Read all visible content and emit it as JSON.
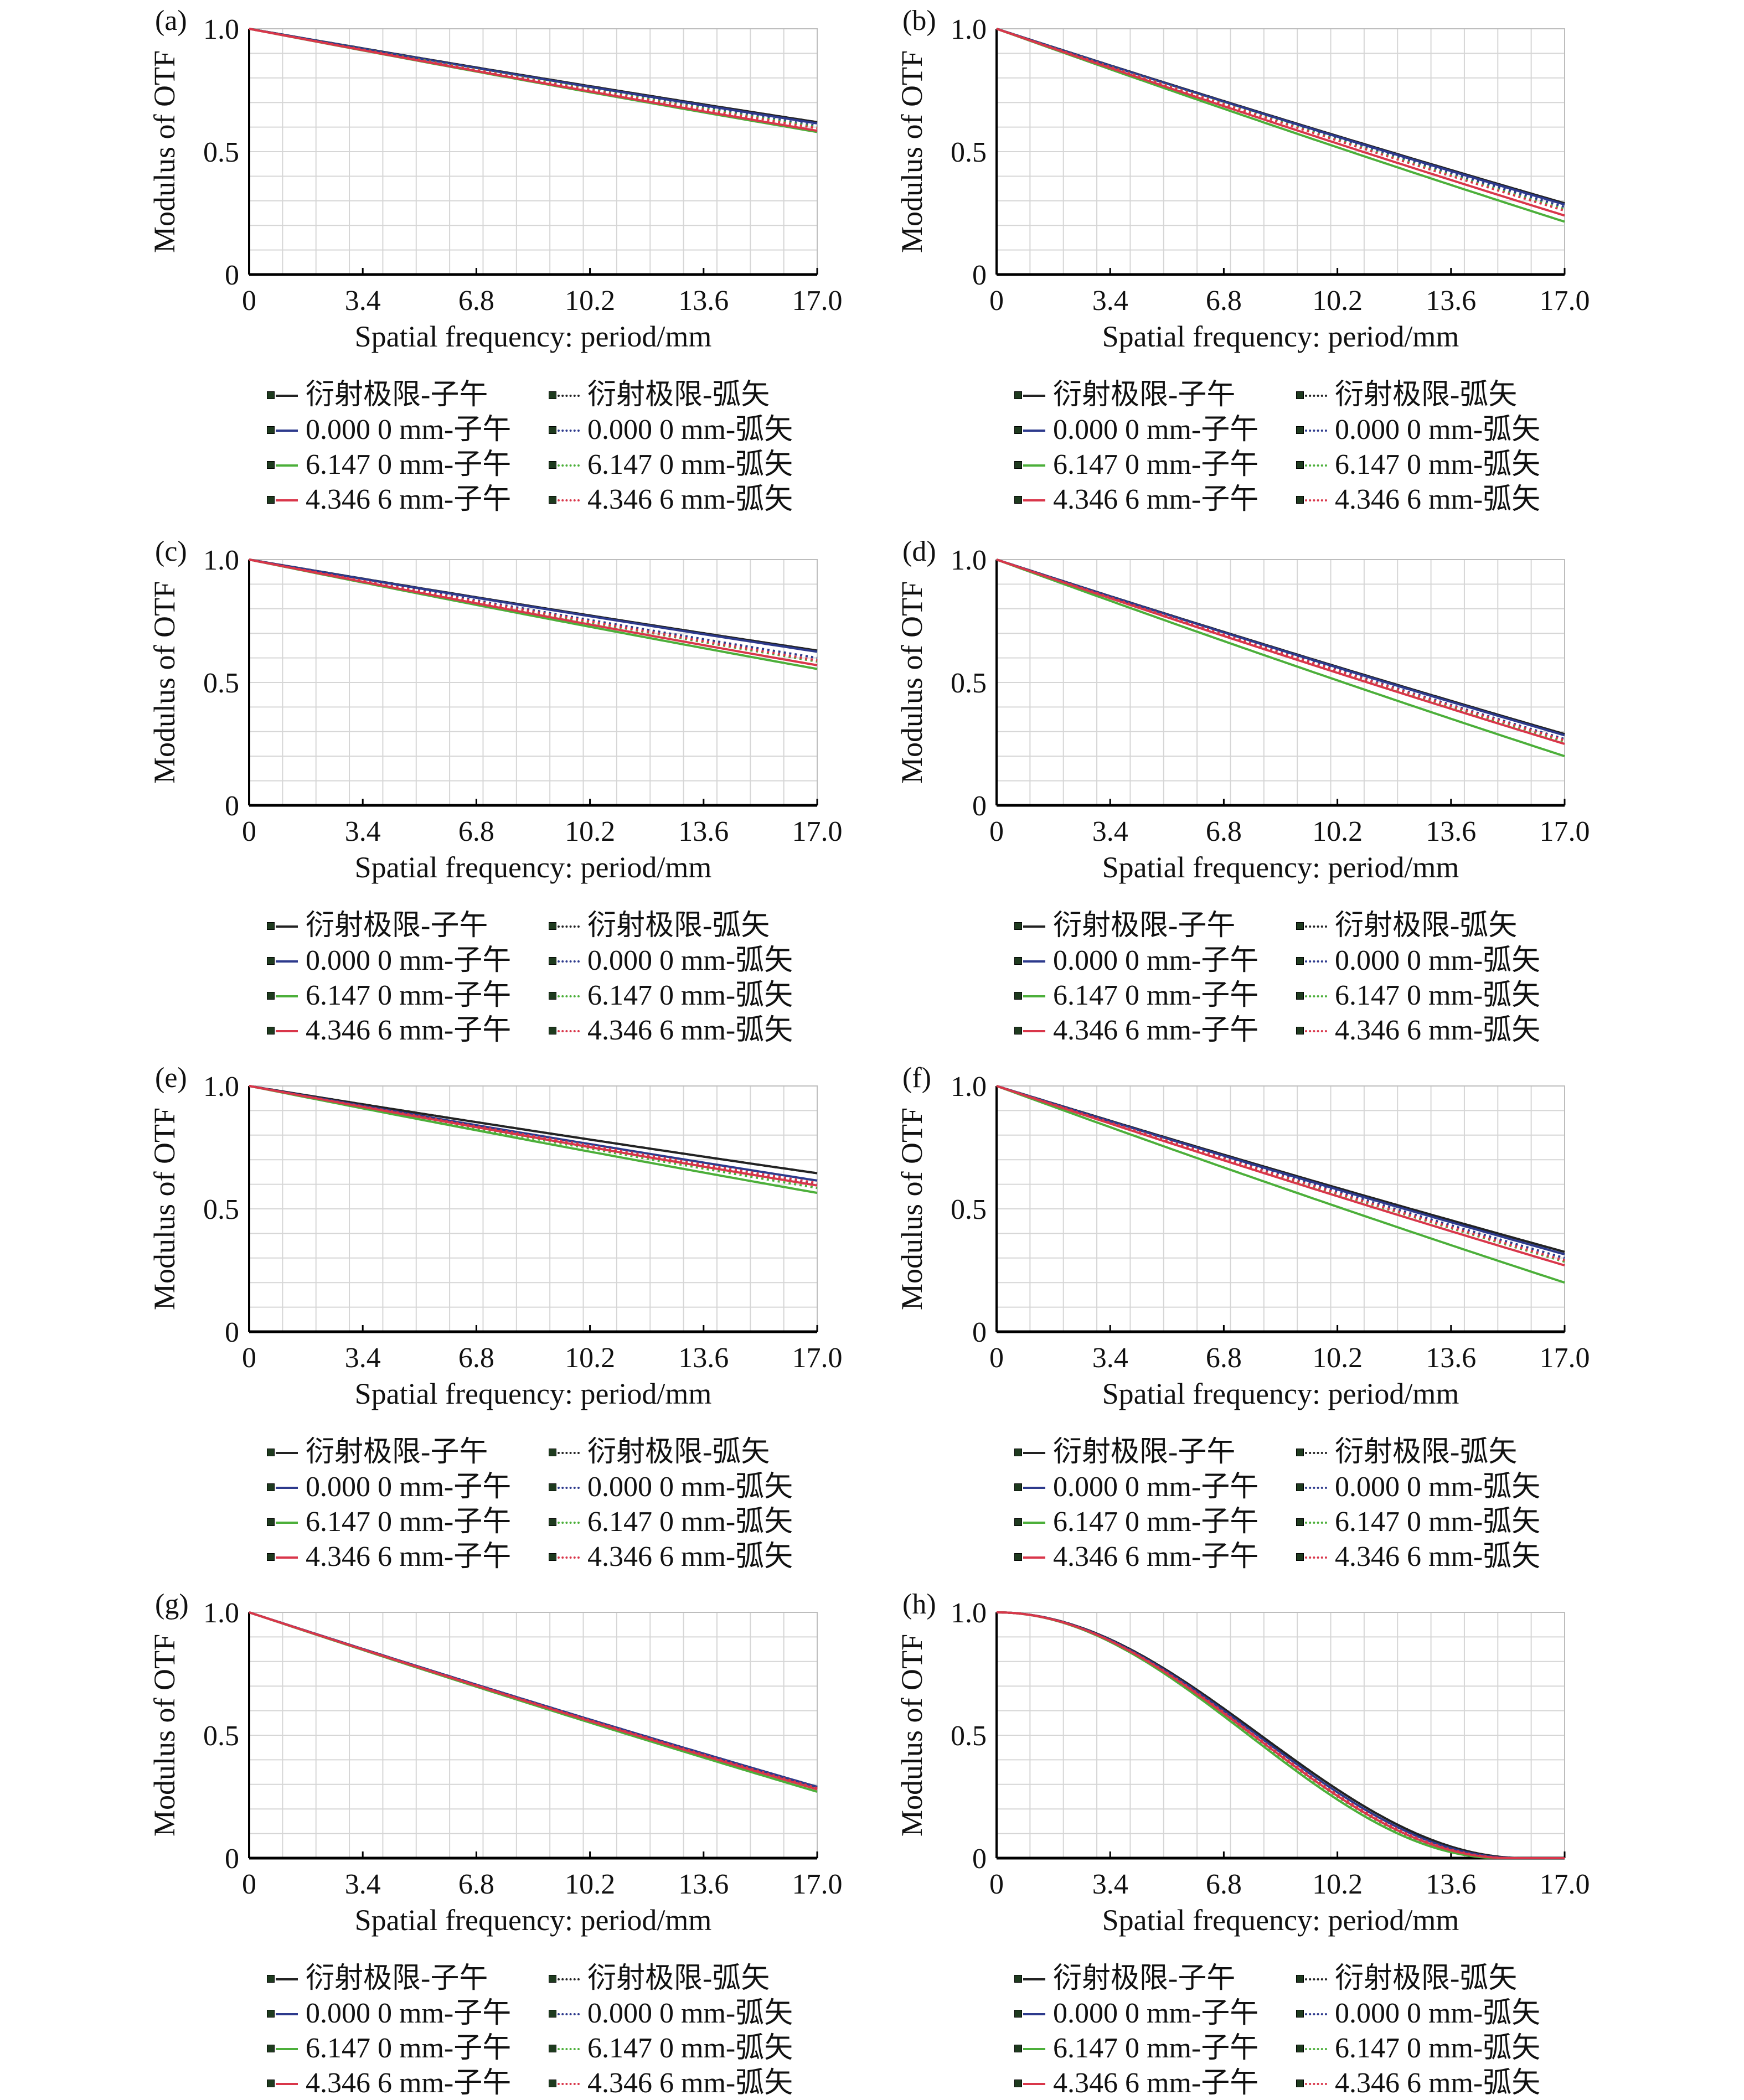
{
  "common": {
    "xlabel": "Spatial frequency: period/mm",
    "ylabel": "Modulus of OTF",
    "x_ticks": [
      "0",
      "3.4",
      "6.8",
      "10.2",
      "13.6",
      "17.0"
    ],
    "y_ticks": [
      "0",
      "0.5",
      "1.0"
    ]
  },
  "legend": {
    "entries": [
      {
        "label": "衍射极限-子午",
        "style": "solid",
        "color": "#222222"
      },
      {
        "label": "衍射极限-弧矢",
        "style": "dotted",
        "color": "#222222"
      },
      {
        "label": "0.000 0 mm-子午",
        "style": "solid",
        "color": "#2d3a8c"
      },
      {
        "label": "0.000 0 mm-弧矢",
        "style": "dotted",
        "color": "#2d3a8c"
      },
      {
        "label": "6.147 0 mm-子午",
        "style": "solid",
        "color": "#4caf3a"
      },
      {
        "label": "6.147 0 mm-弧矢",
        "style": "dotted",
        "color": "#4caf3a"
      },
      {
        "label": "4.346 6 mm-子午",
        "style": "solid",
        "color": "#d9364a"
      },
      {
        "label": "4.346 6 mm-弧矢",
        "style": "dotted",
        "color": "#d9364a"
      }
    ]
  },
  "chart_data": [
    {
      "panel": "(a)",
      "type": "line",
      "xlim": [
        0,
        17
      ],
      "ylim": [
        0,
        1
      ],
      "shape": "linear",
      "grid": true,
      "series": [
        {
          "name": "衍射极限-子午",
          "end": 0.62
        },
        {
          "name": "衍射极限-弧矢",
          "end": 0.62
        },
        {
          "name": "0.000 0 mm-子午",
          "end": 0.615
        },
        {
          "name": "0.000 0 mm-弧矢",
          "end": 0.605
        },
        {
          "name": "6.147 0 mm-子午",
          "end": 0.58
        },
        {
          "name": "6.147 0 mm-弧矢",
          "end": 0.6
        },
        {
          "name": "4.346 6 mm-子午",
          "end": 0.585
        },
        {
          "name": "4.346 6 mm-弧矢",
          "end": 0.595
        }
      ]
    },
    {
      "panel": "(b)",
      "type": "line",
      "xlim": [
        0,
        17
      ],
      "ylim": [
        0,
        1
      ],
      "shape": "linear",
      "grid": true,
      "series": [
        {
          "name": "衍射极限-子午",
          "end": 0.29
        },
        {
          "name": "衍射极限-弧矢",
          "end": 0.29
        },
        {
          "name": "0.000 0 mm-子午",
          "end": 0.285
        },
        {
          "name": "0.000 0 mm-弧矢",
          "end": 0.275
        },
        {
          "name": "6.147 0 mm-子午",
          "end": 0.215
        },
        {
          "name": "6.147 0 mm-弧矢",
          "end": 0.265
        },
        {
          "name": "4.346 6 mm-子午",
          "end": 0.24
        },
        {
          "name": "4.346 6 mm-弧矢",
          "end": 0.26
        }
      ]
    },
    {
      "panel": "(c)",
      "type": "line",
      "xlim": [
        0,
        17
      ],
      "ylim": [
        0,
        1
      ],
      "shape": "linear",
      "grid": true,
      "series": [
        {
          "name": "衍射极限-子午",
          "end": 0.63
        },
        {
          "name": "衍射极限-弧矢",
          "end": 0.63
        },
        {
          "name": "0.000 0 mm-子午",
          "end": 0.625
        },
        {
          "name": "0.000 0 mm-弧矢",
          "end": 0.6
        },
        {
          "name": "6.147 0 mm-子午",
          "end": 0.555
        },
        {
          "name": "6.147 0 mm-弧矢",
          "end": 0.585
        },
        {
          "name": "4.346 6 mm-子午",
          "end": 0.57
        },
        {
          "name": "4.346 6 mm-弧矢",
          "end": 0.59
        }
      ]
    },
    {
      "panel": "(d)",
      "type": "line",
      "xlim": [
        0,
        17
      ],
      "ylim": [
        0,
        1
      ],
      "shape": "linear",
      "grid": true,
      "series": [
        {
          "name": "衍射极限-子午",
          "end": 0.29
        },
        {
          "name": "衍射极限-弧矢",
          "end": 0.29
        },
        {
          "name": "0.000 0 mm-子午",
          "end": 0.285
        },
        {
          "name": "0.000 0 mm-弧矢",
          "end": 0.27
        },
        {
          "name": "6.147 0 mm-子午",
          "end": 0.2
        },
        {
          "name": "6.147 0 mm-弧矢",
          "end": 0.26
        },
        {
          "name": "4.346 6 mm-子午",
          "end": 0.25
        },
        {
          "name": "4.346 6 mm-弧矢",
          "end": 0.265
        }
      ]
    },
    {
      "panel": "(e)",
      "type": "line",
      "xlim": [
        0,
        17
      ],
      "ylim": [
        0,
        1
      ],
      "shape": "linear",
      "grid": true,
      "series": [
        {
          "name": "衍射极限-子午",
          "end": 0.645
        },
        {
          "name": "衍射极限-弧矢",
          "end": 0.645
        },
        {
          "name": "0.000 0 mm-子午",
          "end": 0.615
        },
        {
          "name": "0.000 0 mm-弧矢",
          "end": 0.6
        },
        {
          "name": "6.147 0 mm-子午",
          "end": 0.565
        },
        {
          "name": "6.147 0 mm-弧矢",
          "end": 0.585
        },
        {
          "name": "4.346 6 mm-子午",
          "end": 0.595
        },
        {
          "name": "4.346 6 mm-弧矢",
          "end": 0.605
        }
      ]
    },
    {
      "panel": "(f)",
      "type": "line",
      "xlim": [
        0,
        17
      ],
      "ylim": [
        0,
        1
      ],
      "shape": "linear",
      "grid": true,
      "series": [
        {
          "name": "衍射极限-子午",
          "end": 0.325
        },
        {
          "name": "衍射极限-弧矢",
          "end": 0.325
        },
        {
          "name": "0.000 0 mm-子午",
          "end": 0.315
        },
        {
          "name": "0.000 0 mm-弧矢",
          "end": 0.3
        },
        {
          "name": "6.147 0 mm-子午",
          "end": 0.2
        },
        {
          "name": "6.147 0 mm-弧矢",
          "end": 0.285
        },
        {
          "name": "4.346 6 mm-子午",
          "end": 0.27
        },
        {
          "name": "4.346 6 mm-弧矢",
          "end": 0.29
        }
      ]
    },
    {
      "panel": "(g)",
      "type": "line",
      "xlim": [
        0,
        17
      ],
      "ylim": [
        0,
        1
      ],
      "shape": "linear",
      "grid": true,
      "series": [
        {
          "name": "衍射极限-子午",
          "end": 0.29
        },
        {
          "name": "衍射极限-弧矢",
          "end": 0.29
        },
        {
          "name": "0.000 0 mm-子午",
          "end": 0.29
        },
        {
          "name": "0.000 0 mm-弧矢",
          "end": 0.285
        },
        {
          "name": "6.147 0 mm-子午",
          "end": 0.27
        },
        {
          "name": "6.147 0 mm-弧矢",
          "end": 0.28
        },
        {
          "name": "4.346 6 mm-子午",
          "end": 0.28
        },
        {
          "name": "4.346 6 mm-弧矢",
          "end": 0.285
        }
      ]
    },
    {
      "panel": "(h)",
      "type": "line",
      "xlim": [
        0,
        17
      ],
      "ylim": [
        0,
        1
      ],
      "shape": "rolloff",
      "grid": true,
      "series": [
        {
          "name": "衍射极限-子午",
          "end": 0.0,
          "cutoff": 15.8
        },
        {
          "name": "衍射极限-弧矢",
          "end": 0.0,
          "cutoff": 15.8
        },
        {
          "name": "0.000 0 mm-子午",
          "end": 0.0,
          "cutoff": 15.6
        },
        {
          "name": "0.000 0 mm-弧矢",
          "end": 0.0,
          "cutoff": 15.5
        },
        {
          "name": "6.147 0 mm-子午",
          "end": 0.0,
          "cutoff": 15.1
        },
        {
          "name": "6.147 0 mm-弧矢",
          "end": 0.0,
          "cutoff": 15.3
        },
        {
          "name": "4.346 6 mm-子午",
          "end": 0.0,
          "cutoff": 15.35
        },
        {
          "name": "4.346 6 mm-弧矢",
          "end": 0.0,
          "cutoff": 15.45
        }
      ]
    }
  ]
}
